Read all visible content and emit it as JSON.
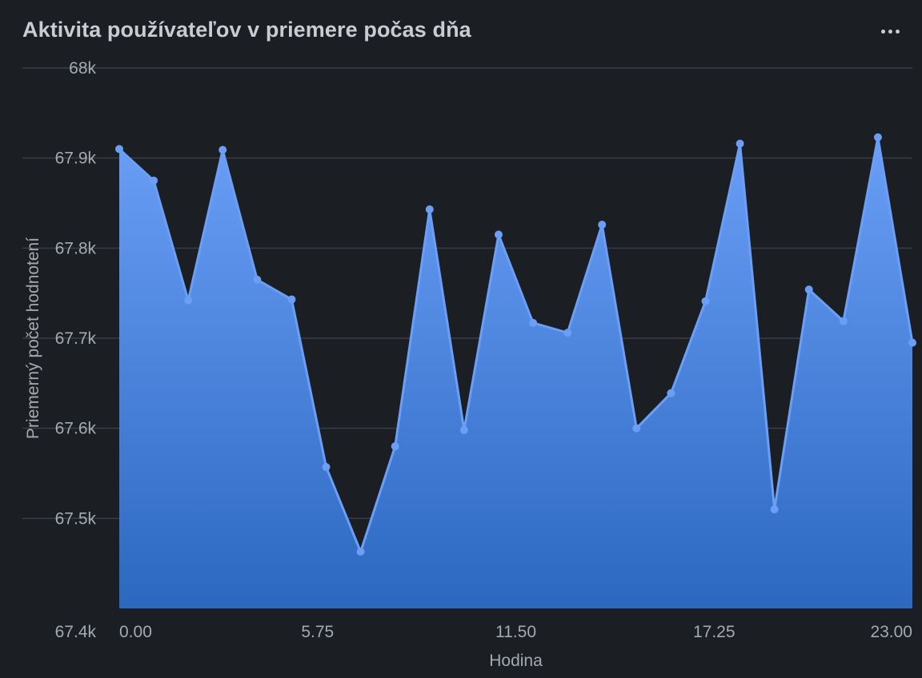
{
  "header": {
    "title": "Aktivita používateľov v priemere počas dňa",
    "menu_icon": "more-horizontal-icon"
  },
  "chart_data": {
    "type": "area",
    "title": "Aktivita používateľov v priemere počas dňa",
    "xlabel": "Hodina",
    "ylabel": "Priemerný počet hodnotení",
    "x": [
      0,
      1,
      2,
      3,
      4,
      5,
      6,
      7,
      8,
      9,
      10,
      11,
      12,
      13,
      14,
      15,
      16,
      17,
      18,
      19,
      20,
      21,
      22,
      23
    ],
    "values": [
      67910,
      67875,
      67742,
      67909,
      67765,
      67743,
      67557,
      67463,
      67580,
      67843,
      67598,
      67815,
      67717,
      67706,
      67826,
      67600,
      67639,
      67741,
      67916,
      67510,
      67754,
      67719,
      67923,
      67695
    ],
    "ylim": [
      67400,
      68000
    ],
    "yticks": [
      67400,
      67500,
      67600,
      67700,
      67800,
      67900,
      68000
    ],
    "ytick_labels": [
      "67.4k",
      "67.5k",
      "67.6k",
      "67.7k",
      "67.8k",
      "67.9k",
      "68k"
    ],
    "xticks": [
      0,
      5.75,
      11.5,
      17.25,
      23
    ],
    "xtick_labels": [
      "0.00",
      "5.75",
      "11.50",
      "17.25",
      "23.00"
    ],
    "grid": true,
    "legend": "none",
    "colors": {
      "line": "#6b9ef5",
      "fill_top": "#6a9ef7",
      "fill_bottom": "#2c68c0",
      "grid": "#3a3e46"
    }
  }
}
